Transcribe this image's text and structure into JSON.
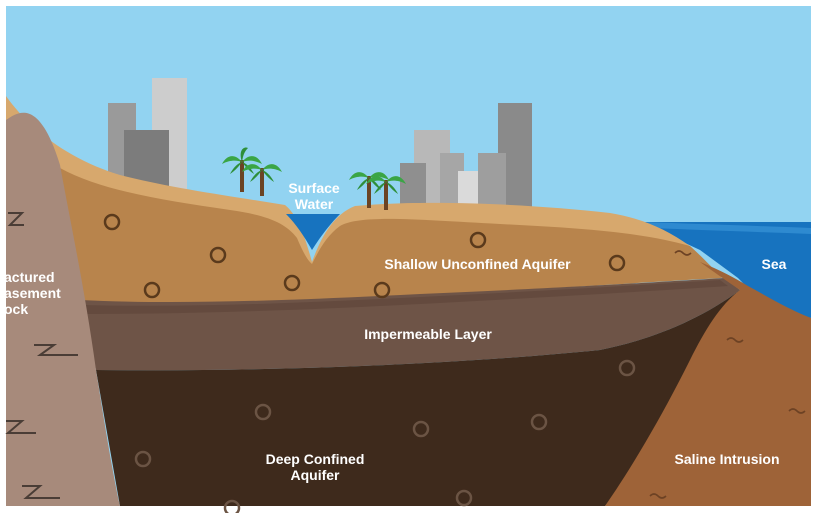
{
  "diagram": {
    "labels": {
      "surface_water": [
        "Surface",
        "Water"
      ],
      "shallow_aquifer": "Shallow Unconfined Aquifer",
      "impermeable_layer": "Impermeable Layer",
      "deep_aquifer": [
        "Deep Confined",
        "Aquifer"
      ],
      "saline_intrusion": "Saline Intrusion",
      "sea": "Sea",
      "fractured_rock": [
        "actured",
        "asement",
        "ock"
      ]
    },
    "colors": {
      "sky": "#92d3f1",
      "sea": "#1773bf",
      "sea_light": "#2e8ad0",
      "topsoil": "#d7a86d",
      "shallow_aquifer": "#b8844c",
      "impermeable_layer": "#6e5447",
      "deep_aquifer": "#3e2a1c",
      "saline_intrusion": "#9e6338",
      "basement_rock": "#a78a7b",
      "buildings": [
        "#9a9a9a",
        "#b8b8b8",
        "#cdcdcd",
        "#7c7c7c"
      ],
      "palm_leaves": "#3aa545",
      "palm_trunk": "#6b4424",
      "label_text": "#ffffff"
    },
    "icons": [
      "pore-circle-icon",
      "fracture-zigzag-icon",
      "palm-tree-icon",
      "building-icon",
      "wave-icon"
    ]
  }
}
